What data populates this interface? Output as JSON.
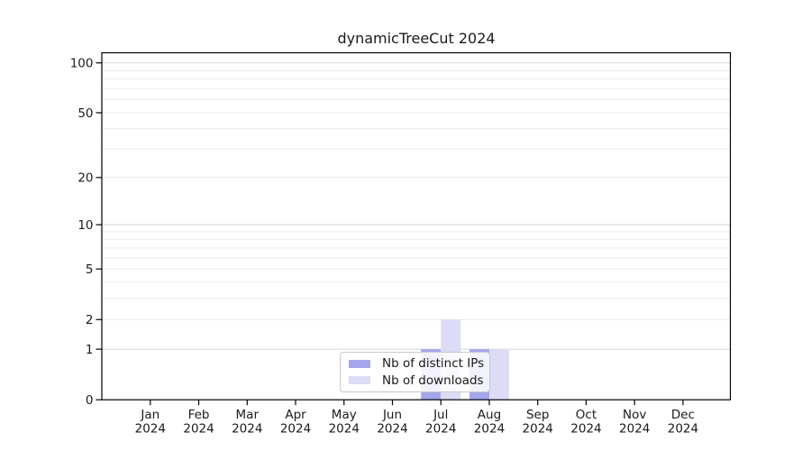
{
  "title": "dynamicTreeCut 2024",
  "chart_data": {
    "type": "bar",
    "title": "dynamicTreeCut 2024",
    "categories": [
      "Jan 2024",
      "Feb 2024",
      "Mar 2024",
      "Apr 2024",
      "May 2024",
      "Jun 2024",
      "Jul 2024",
      "Aug 2024",
      "Sep 2024",
      "Oct 2024",
      "Nov 2024",
      "Dec 2024"
    ],
    "series": [
      {
        "name": "Nb of distinct IPs",
        "color": "#a5a5ec",
        "values": [
          0,
          0,
          0,
          0,
          0,
          0,
          1,
          1,
          0,
          0,
          0,
          0
        ]
      },
      {
        "name": "Nb of downloads",
        "color": "#dcdcf7",
        "values": [
          0,
          0,
          0,
          0,
          0,
          0,
          2,
          1,
          0,
          0,
          0,
          0
        ]
      }
    ],
    "xlabel": "",
    "ylabel": "",
    "yscale": "log1p",
    "yticks": [
      0,
      1,
      2,
      5,
      10,
      20,
      50,
      100
    ],
    "ylim": [
      0,
      116
    ],
    "grid": {
      "axis": "y",
      "minor_values": [
        2,
        3,
        4,
        5,
        6,
        7,
        8,
        9,
        20,
        30,
        40,
        50,
        60,
        70,
        80,
        90
      ],
      "major_values": [
        1,
        10,
        100
      ],
      "minor_color": "#ededed",
      "major_color": "#d6d6d6"
    },
    "legend": {
      "position": "lower center",
      "border_color": "#c9c9c9",
      "items": [
        "Nb of distinct IPs",
        "Nb of downloads"
      ]
    },
    "axis_color": "#000000"
  }
}
